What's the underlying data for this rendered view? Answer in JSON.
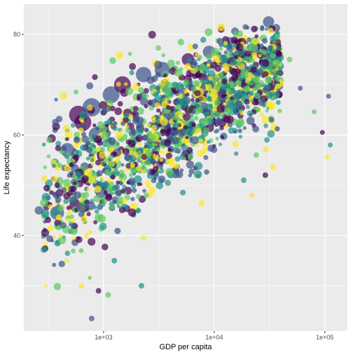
{
  "chart_data": {
    "type": "scatter",
    "title": "",
    "xlabel": "GDP per capita",
    "ylabel": "Life expectancy",
    "x_scale": "log10",
    "xlim": [
      190,
      160000
    ],
    "ylim": [
      21,
      86
    ],
    "x_ticks": [
      {
        "value": 1000,
        "label": "1e+03"
      },
      {
        "value": 10000,
        "label": "1e+04"
      },
      {
        "value": 100000,
        "label": "1e+05"
      }
    ],
    "y_ticks": [
      {
        "value": 40,
        "label": "40"
      },
      {
        "value": 60,
        "label": "60"
      },
      {
        "value": 80,
        "label": "80"
      }
    ],
    "grid": true,
    "legend": "none",
    "background": "#ebebeb",
    "grid_color": "#ffffff",
    "palette": [
      "#440154",
      "#3b528b",
      "#21908c",
      "#5dc863",
      "#fde725"
    ],
    "point_alpha": 0.7,
    "num_points": 1700,
    "large_points": [
      {
        "x": 590,
        "y": 64,
        "size": 13
      },
      {
        "x": 780,
        "y": 65.5,
        "size": 13
      },
      {
        "x": 1170,
        "y": 68,
        "size": 12
      },
      {
        "x": 1480,
        "y": 70,
        "size": 12
      },
      {
        "x": 2300,
        "y": 72,
        "size": 11
      },
      {
        "x": 3400,
        "y": 73,
        "size": 11
      },
      {
        "x": 650,
        "y": 62.5,
        "size": 12
      },
      {
        "x": 860,
        "y": 60,
        "size": 11
      },
      {
        "x": 470,
        "y": 57,
        "size": 10
      },
      {
        "x": 5800,
        "y": 75,
        "size": 9
      },
      {
        "x": 9000,
        "y": 76.5,
        "size": 9
      },
      {
        "x": 380,
        "y": 44.5,
        "size": 10
      },
      {
        "x": 560,
        "y": 46,
        "size": 9
      },
      {
        "x": 31000,
        "y": 82.5,
        "size": 8
      }
    ],
    "outlier_points": [
      {
        "x": 108000,
        "y": 67.7,
        "size": 3.5
      },
      {
        "x": 80000,
        "y": 64.6,
        "size": 3.5
      },
      {
        "x": 95000,
        "y": 60.5,
        "size": 3.5
      },
      {
        "x": 112000,
        "y": 58,
        "size": 3.5
      },
      {
        "x": 105000,
        "y": 55.6,
        "size": 3.5
      },
      {
        "x": 60000,
        "y": 69.3,
        "size": 3.5
      },
      {
        "x": 48000,
        "y": 75,
        "size": 4
      },
      {
        "x": 38000,
        "y": 76.3,
        "size": 4
      },
      {
        "x": 30000,
        "y": 59,
        "size": 4
      },
      {
        "x": 34000,
        "y": 53.6,
        "size": 4
      },
      {
        "x": 33000,
        "y": 63,
        "size": 4
      },
      {
        "x": 24000,
        "y": 56,
        "size": 4
      },
      {
        "x": 29000,
        "y": 52,
        "size": 4
      },
      {
        "x": 18500,
        "y": 51,
        "size": 4
      },
      {
        "x": 22000,
        "y": 48,
        "size": 3.5
      },
      {
        "x": 780,
        "y": 23.5,
        "size": 4
      },
      {
        "x": 1100,
        "y": 28.2,
        "size": 4
      },
      {
        "x": 900,
        "y": 29,
        "size": 4
      },
      {
        "x": 2200,
        "y": 30,
        "size": 4
      },
      {
        "x": 630,
        "y": 30,
        "size": 4
      },
      {
        "x": 260,
        "y": 45,
        "size": 6
      },
      {
        "x": 290,
        "y": 46.5,
        "size": 6
      },
      {
        "x": 380,
        "y": 50,
        "size": 4
      },
      {
        "x": 1250,
        "y": 35,
        "size": 4
      },
      {
        "x": 2300,
        "y": 39.5,
        "size": 4
      }
    ]
  }
}
